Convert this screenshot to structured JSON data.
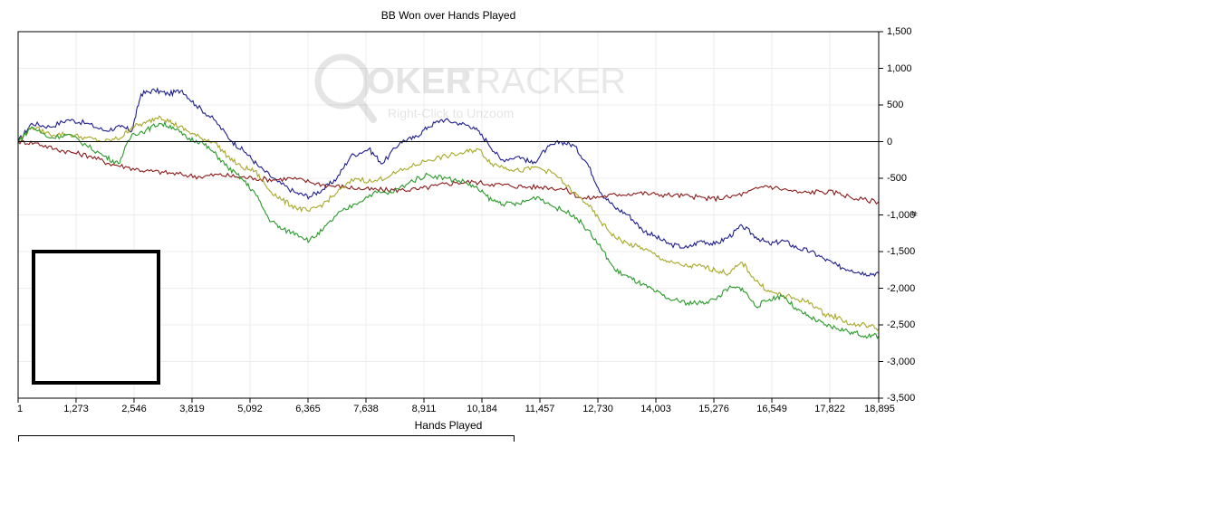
{
  "chart_data": {
    "type": "line",
    "title": "BB Won over Hands Played",
    "xlabel": "Hands Played",
    "ylabel": "#",
    "xlim": [
      1,
      18895
    ],
    "ylim": [
      -3500,
      1500
    ],
    "x_ticks": [
      "1",
      "1,273",
      "2,546",
      "3,819",
      "5,092",
      "6,365",
      "7,638",
      "8,911",
      "10,184",
      "11,457",
      "12,730",
      "14,003",
      "15,276",
      "16,549",
      "17,822",
      "18,895"
    ],
    "x_tick_values": [
      1,
      1273,
      2546,
      3819,
      5092,
      6365,
      7638,
      8911,
      10184,
      11457,
      12730,
      14003,
      15276,
      16549,
      17822,
      18895
    ],
    "y_ticks": [
      "1,500",
      "1,000",
      "500",
      "0",
      "-500",
      "-1,000",
      "-1,500",
      "-2,000",
      "-2,500",
      "-3,000",
      "-3,500"
    ],
    "y_tick_values": [
      1500,
      1000,
      500,
      0,
      -500,
      -1000,
      -1500,
      -2000,
      -2500,
      -3000,
      -3500
    ],
    "grid": true,
    "watermark": {
      "brand": "POKERTRACKER",
      "hint": "Right-Click to Unzoom"
    },
    "series": [
      {
        "color": "#1f1f8f",
        "x": [
          1,
          300,
          700,
          1100,
          1500,
          1900,
          2250,
          2500,
          2700,
          3000,
          3300,
          3600,
          3900,
          4300,
          4700,
          5000,
          5300,
          5700,
          6100,
          6400,
          6700,
          7000,
          7300,
          7700,
          8000,
          8400,
          8700,
          9000,
          9300,
          9700,
          10000,
          10300,
          10600,
          11000,
          11300,
          11600,
          11900,
          12200,
          12500,
          12800,
          13100,
          13400,
          13700,
          14000,
          14300,
          14700,
          15000,
          15300,
          15600,
          15900,
          16200,
          16500,
          16800,
          17100,
          17400,
          17700,
          18000,
          18300,
          18600,
          18895
        ],
        "values": [
          0,
          250,
          200,
          300,
          250,
          150,
          200,
          150,
          650,
          700,
          650,
          700,
          500,
          300,
          0,
          -150,
          -350,
          -550,
          -700,
          -750,
          -650,
          -500,
          -200,
          -100,
          -300,
          0,
          50,
          200,
          300,
          250,
          200,
          0,
          -250,
          -200,
          -300,
          -100,
          0,
          -50,
          -300,
          -700,
          -900,
          -1000,
          -1200,
          -1300,
          -1400,
          -1450,
          -1350,
          -1400,
          -1300,
          -1150,
          -1300,
          -1400,
          -1350,
          -1450,
          -1500,
          -1600,
          -1700,
          -1750,
          -1800,
          -1800
        ]
      },
      {
        "color": "#8b1a1a",
        "x": [
          1,
          400,
          800,
          1200,
          1600,
          2000,
          2400,
          2800,
          3200,
          3600,
          4000,
          4400,
          4800,
          5200,
          5600,
          6000,
          6400,
          6800,
          7200,
          7600,
          8000,
          8400,
          8800,
          9200,
          9600,
          10000,
          10400,
          10800,
          11200,
          11600,
          12000,
          12400,
          12800,
          13200,
          13600,
          14000,
          14400,
          14800,
          15200,
          15600,
          16000,
          16400,
          16800,
          17200,
          17600,
          18000,
          18400,
          18895
        ],
        "values": [
          0,
          -20,
          -100,
          -150,
          -200,
          -300,
          -350,
          -400,
          -420,
          -450,
          -480,
          -450,
          -480,
          -500,
          -520,
          -500,
          -550,
          -600,
          -620,
          -650,
          -660,
          -660,
          -650,
          -600,
          -560,
          -550,
          -580,
          -600,
          -620,
          -620,
          -650,
          -780,
          -750,
          -720,
          -700,
          -720,
          -730,
          -750,
          -780,
          -760,
          -700,
          -600,
          -650,
          -700,
          -680,
          -700,
          -780,
          -820
        ]
      },
      {
        "color": "#a8a828",
        "x": [
          1,
          300,
          700,
          1100,
          1500,
          1900,
          2250,
          2500,
          2800,
          3100,
          3400,
          3700,
          4000,
          4300,
          4600,
          4900,
          5200,
          5500,
          5800,
          6100,
          6400,
          6700,
          7000,
          7400,
          7800,
          8200,
          8600,
          9000,
          9400,
          9800,
          10100,
          10400,
          10700,
          11000,
          11400,
          11800,
          12200,
          12500,
          12800,
          13100,
          13400,
          13700,
          14000,
          14300,
          14700,
          15000,
          15300,
          15600,
          15900,
          16200,
          16500,
          16800,
          17100,
          17400,
          17700,
          18000,
          18300,
          18600,
          18895
        ],
        "values": [
          0,
          200,
          100,
          100,
          50,
          0,
          50,
          200,
          250,
          350,
          250,
          150,
          50,
          0,
          -200,
          -350,
          -400,
          -650,
          -800,
          -900,
          -950,
          -850,
          -700,
          -500,
          -550,
          -450,
          -350,
          -250,
          -200,
          -150,
          -100,
          -300,
          -350,
          -400,
          -350,
          -450,
          -700,
          -850,
          -1100,
          -1300,
          -1400,
          -1450,
          -1550,
          -1650,
          -1700,
          -1700,
          -1750,
          -1800,
          -1650,
          -1900,
          -2050,
          -2100,
          -2150,
          -2200,
          -2350,
          -2400,
          -2500,
          -2500,
          -2550
        ]
      },
      {
        "color": "#2a9a2a",
        "x": [
          1,
          300,
          700,
          1100,
          1500,
          1900,
          2200,
          2500,
          2800,
          3100,
          3400,
          3700,
          4000,
          4300,
          4600,
          4900,
          5200,
          5500,
          5800,
          6100,
          6400,
          6700,
          7000,
          7400,
          7800,
          8200,
          8600,
          9000,
          9400,
          9800,
          10100,
          10400,
          10700,
          11000,
          11400,
          11800,
          12200,
          12500,
          12800,
          13100,
          13400,
          13700,
          14000,
          14300,
          14700,
          15000,
          15300,
          15600,
          15900,
          16200,
          16500,
          16800,
          17100,
          17400,
          17700,
          18000,
          18300,
          18600,
          18895
        ],
        "values": [
          0,
          200,
          50,
          100,
          -50,
          -200,
          -300,
          100,
          150,
          250,
          200,
          50,
          0,
          -150,
          -350,
          -500,
          -700,
          -1050,
          -1200,
          -1250,
          -1350,
          -1200,
          -1000,
          -850,
          -700,
          -700,
          -550,
          -450,
          -500,
          -550,
          -650,
          -800,
          -850,
          -850,
          -750,
          -900,
          -1000,
          -1200,
          -1450,
          -1750,
          -1850,
          -1950,
          -2050,
          -2150,
          -2200,
          -2200,
          -2150,
          -2000,
          -2000,
          -2250,
          -2150,
          -2100,
          -2300,
          -2400,
          -2500,
          -2550,
          -2600,
          -2650,
          -2650
        ]
      }
    ]
  }
}
